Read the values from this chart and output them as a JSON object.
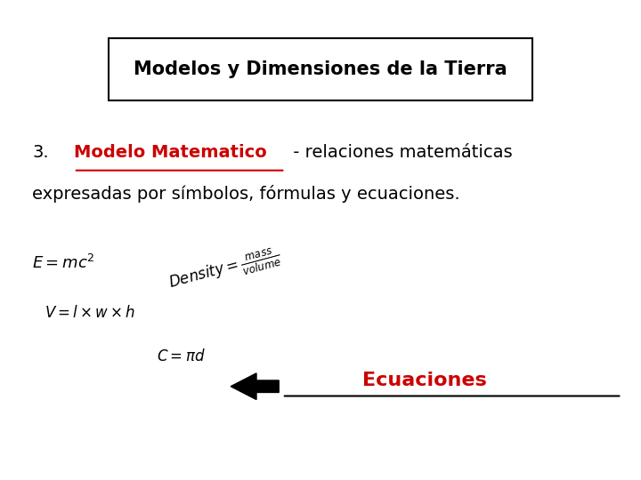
{
  "title": "Modelos y Dimensiones de la Tierra",
  "bg_color": "#ffffff",
  "text_color": "#000000",
  "red_color": "#cc0000",
  "line3_number": "3.",
  "line3_red": "Modelo Matematico",
  "line3_rest": " - relaciones matemáticas",
  "line4": "expresadas por símbolos, fórmulas y ecuaciones.",
  "equations_label": "Ecuaciones",
  "title_fontsize": 15,
  "body_fontsize": 14,
  "eq_fontsize": 12,
  "eq_label_fontsize": 16
}
